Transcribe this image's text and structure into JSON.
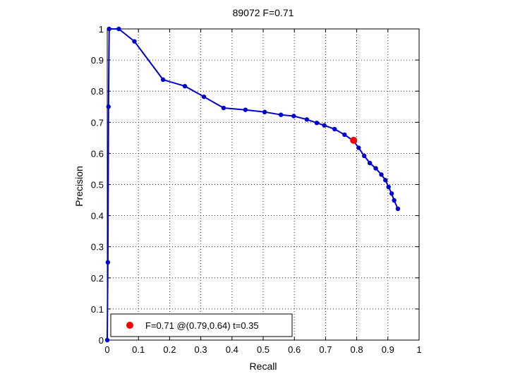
{
  "chart_data": {
    "type": "line",
    "title": "89072 F=0.71",
    "xlabel": "Recall",
    "ylabel": "Precision",
    "xlim": [
      0,
      1
    ],
    "ylim": [
      0,
      1
    ],
    "grid": true,
    "xticks": [
      "0",
      "0.1",
      "0.2",
      "0.3",
      "0.4",
      "0.5",
      "0.6",
      "0.7",
      "0.8",
      "0.9",
      "1"
    ],
    "yticks": [
      "0",
      "0.1",
      "0.2",
      "0.3",
      "0.4",
      "0.5",
      "0.6",
      "0.7",
      "0.8",
      "0.9",
      "1"
    ],
    "series": [
      {
        "color": "#0000cc",
        "x": [
          0.0,
          0.002,
          0.004,
          0.006,
          0.037,
          0.087,
          0.179,
          0.249,
          0.31,
          0.373,
          0.443,
          0.505,
          0.557,
          0.598,
          0.64,
          0.672,
          0.696,
          0.729,
          0.761,
          0.79,
          0.806,
          0.824,
          0.842,
          0.861,
          0.879,
          0.892,
          0.902,
          0.912,
          0.92,
          0.932
        ],
        "y": [
          0.0,
          0.25,
          0.75,
          1.0,
          1.0,
          0.96,
          0.837,
          0.816,
          0.782,
          0.746,
          0.74,
          0.733,
          0.724,
          0.72,
          0.709,
          0.698,
          0.69,
          0.678,
          0.66,
          0.64,
          0.618,
          0.592,
          0.569,
          0.552,
          0.532,
          0.514,
          0.492,
          0.471,
          0.449,
          0.422
        ]
      }
    ],
    "highlight": {
      "x": 0.79,
      "y": 0.642,
      "color": "#ff0000",
      "legend": "F=0.71 @(0.79,0.64) t=0.35"
    }
  }
}
